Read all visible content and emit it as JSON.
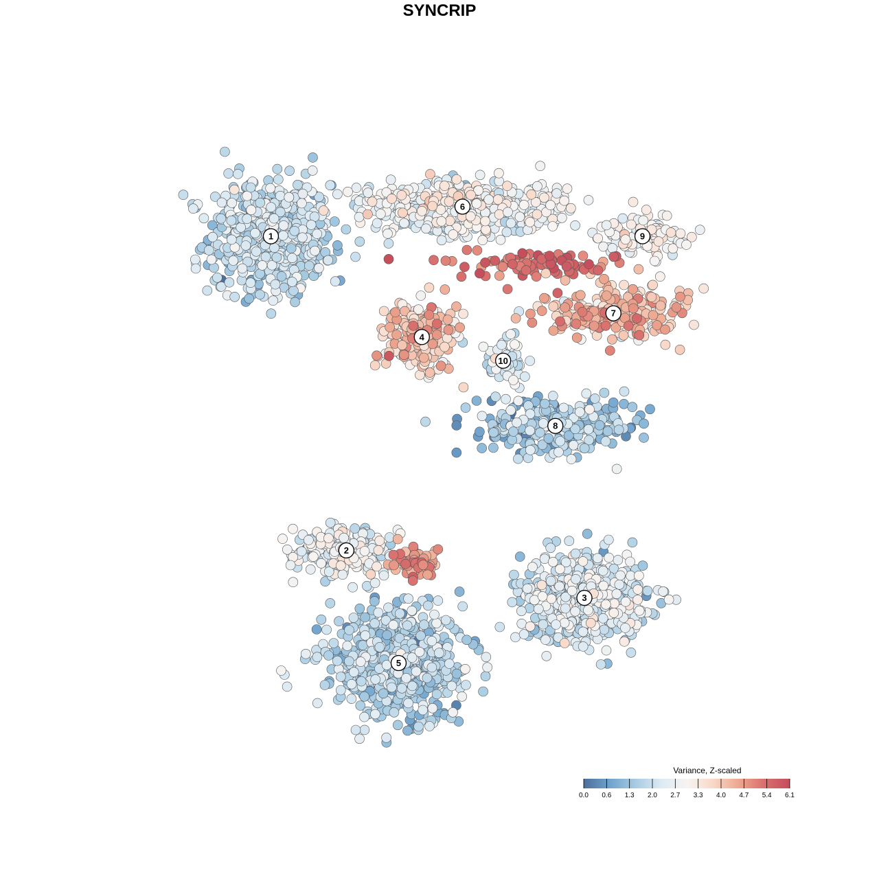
{
  "chart_data": {
    "type": "scatter",
    "title": "SYNCRIP",
    "xlabel": "",
    "ylabel": "",
    "grid": false,
    "legend_placement": "bottom-right",
    "colorbar": {
      "title": "Variance, Z-scaled",
      "ticks": [
        "0.0",
        "0.6",
        "1.3",
        "2.0",
        "2.7",
        "3.3",
        "4.0",
        "4.7",
        "5.4",
        "6.1"
      ],
      "range": [
        0.0,
        6.1
      ],
      "colors": [
        "#4b6f9c",
        "#6fa2cd",
        "#a6cbe2",
        "#dceaf3",
        "#f7f4f2",
        "#f9d9c9",
        "#eda890",
        "#d9706e",
        "#c44e5b"
      ]
    },
    "clusters": [
      {
        "label": "1",
        "x": -2.7,
        "y": 3.1,
        "spread_x": 1.05,
        "spread_y": 0.95,
        "n": 640,
        "mean": 1.9,
        "sd": 0.45
      },
      {
        "label": "2",
        "x": -1.4,
        "y": -2.2,
        "spread_x": 0.9,
        "spread_y": 0.45,
        "n": 230,
        "mean": 2.6,
        "sd": 0.55
      },
      {
        "label": "3",
        "x": 2.7,
        "y": -3.0,
        "spread_x": 1.1,
        "spread_y": 0.75,
        "n": 520,
        "mean": 2.2,
        "sd": 0.55
      },
      {
        "label": "4",
        "x": -0.1,
        "y": 1.4,
        "spread_x": 0.6,
        "spread_y": 0.55,
        "n": 280,
        "mean": 3.7,
        "sd": 0.6
      },
      {
        "label": "5",
        "x": -0.5,
        "y": -4.1,
        "spread_x": 1.15,
        "spread_y": 0.85,
        "n": 720,
        "mean": 1.7,
        "sd": 0.5
      },
      {
        "label": "6",
        "x": 0.6,
        "y": 3.6,
        "spread_x": 1.8,
        "spread_y": 0.45,
        "n": 520,
        "mean": 2.7,
        "sd": 0.5
      },
      {
        "label": "7",
        "x": 3.2,
        "y": 1.8,
        "spread_x": 1.2,
        "spread_y": 0.45,
        "n": 230,
        "mean": 4.1,
        "sd": 0.7
      },
      {
        "label": "8",
        "x": 2.2,
        "y": -0.1,
        "spread_x": 1.4,
        "spread_y": 0.45,
        "n": 300,
        "mean": 1.5,
        "sd": 0.6
      },
      {
        "label": "9",
        "x": 3.7,
        "y": 3.1,
        "spread_x": 0.7,
        "spread_y": 0.3,
        "n": 110,
        "mean": 3.0,
        "sd": 0.4
      },
      {
        "label": "10",
        "x": 1.3,
        "y": 1.0,
        "spread_x": 0.35,
        "spread_y": 0.4,
        "n": 60,
        "mean": 2.3,
        "sd": 0.5
      },
      {
        "label": "",
        "x": 1.9,
        "y": 2.6,
        "spread_x": 1.5,
        "spread_y": 0.25,
        "n": 90,
        "mean": 5.3,
        "sd": 0.5
      },
      {
        "label": "",
        "x": -0.2,
        "y": -2.4,
        "spread_x": 0.35,
        "spread_y": 0.25,
        "n": 70,
        "mean": 4.6,
        "sd": 0.6
      }
    ],
    "xlim": [
      -5.0,
      6.0
    ],
    "ylim": [
      -5.6,
      5.0
    ]
  }
}
